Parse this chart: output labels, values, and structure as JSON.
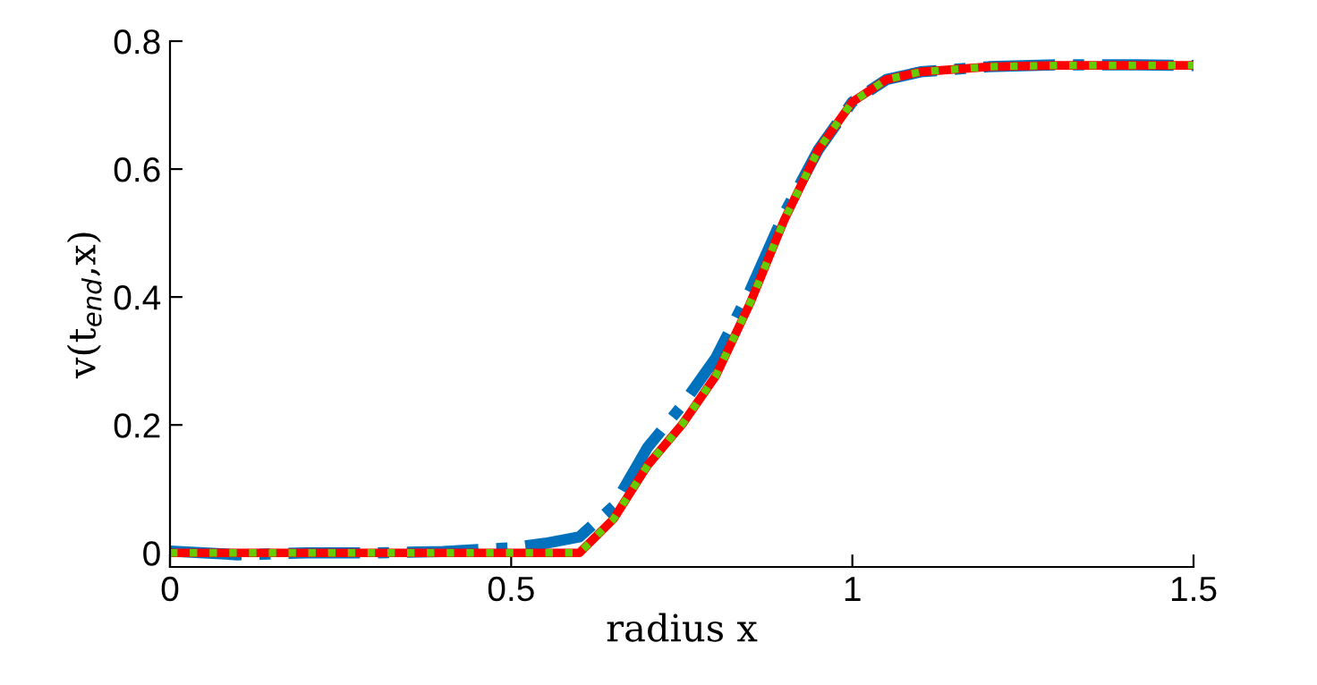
{
  "chart_data": {
    "type": "line",
    "xlabel": "radius x",
    "ylabel": "v(t$_{end}$,x)",
    "xlim": [
      0,
      1.5
    ],
    "ylim": [
      -0.022,
      0.8
    ],
    "xticks": [
      0,
      0.5,
      1,
      1.5
    ],
    "yticks": [
      0,
      0.2,
      0.4,
      0.6,
      0.8
    ],
    "grid": false,
    "marker": "none",
    "x": [
      0,
      0.1,
      0.2,
      0.3,
      0.4,
      0.5,
      0.55,
      0.6,
      0.65,
      0.7,
      0.75,
      0.8,
      0.85,
      0.9,
      0.95,
      1.0,
      1.05,
      1.1,
      1.2,
      1.3,
      1.4,
      1.5
    ],
    "series": [
      {
        "color": "#0072bd",
        "line_style": "dashdot",
        "values": [
          0.003,
          -0.003,
          0.0,
          0.0,
          0.002,
          0.008,
          0.015,
          0.025,
          0.073,
          0.165,
          0.23,
          0.305,
          0.41,
          0.53,
          0.63,
          0.705,
          0.74,
          0.752,
          0.76,
          0.763,
          0.763,
          0.762
        ]
      },
      {
        "color": "#ff0000",
        "line_style": "solid",
        "values": [
          0.0,
          0.0,
          0.0,
          0.0,
          0.0,
          0.0,
          0.0,
          0.0,
          0.053,
          0.137,
          0.2,
          0.277,
          0.39,
          0.52,
          0.63,
          0.705,
          0.74,
          0.752,
          0.76,
          0.762,
          0.762,
          0.762
        ]
      },
      {
        "color": "#66cc00",
        "line_style": "dotted",
        "values": [
          0.0,
          0.0,
          0.0,
          0.0,
          0.0,
          0.0,
          0.0,
          0.0,
          0.053,
          0.137,
          0.2,
          0.277,
          0.39,
          0.52,
          0.63,
          0.705,
          0.74,
          0.752,
          0.76,
          0.762,
          0.762,
          0.762
        ]
      }
    ]
  }
}
